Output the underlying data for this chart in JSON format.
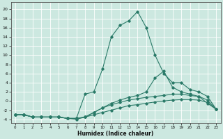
{
  "xlabel": "Humidex (Indice chaleur)",
  "background_color": "#cce8e0",
  "grid_color": "#ffffff",
  "line_color": "#2a7a68",
  "xlim": [
    -0.5,
    23.5
  ],
  "ylim": [
    -4.8,
    21.5
  ],
  "xticks": [
    0,
    1,
    2,
    3,
    4,
    5,
    6,
    7,
    8,
    9,
    10,
    11,
    12,
    13,
    14,
    15,
    16,
    17,
    18,
    19,
    20,
    21,
    22,
    23
  ],
  "yticks": [
    -4,
    -2,
    0,
    2,
    4,
    6,
    8,
    10,
    12,
    14,
    16,
    18,
    20
  ],
  "series": [
    {
      "x": [
        0,
        1,
        2,
        3,
        4,
        5,
        6,
        7,
        8,
        9,
        10,
        11,
        12,
        13,
        14,
        15,
        16,
        17,
        18,
        19,
        20,
        21,
        22,
        23
      ],
      "y": [
        -3,
        -3,
        -3.5,
        -3.5,
        -3.5,
        -3.5,
        -3.8,
        -3.8,
        -3.5,
        -3,
        -2.5,
        -2,
        -1.5,
        -1,
        -0.8,
        -0.5,
        -0.2,
        0.0,
        0.2,
        0.3,
        0.3,
        0.2,
        -0.3,
        -1.8
      ]
    },
    {
      "x": [
        0,
        1,
        2,
        3,
        4,
        5,
        6,
        7,
        8,
        9,
        10,
        11,
        12,
        13,
        14,
        15,
        16,
        17,
        18,
        19,
        20,
        21,
        22,
        23
      ],
      "y": [
        -3,
        -3,
        -3.5,
        -3.5,
        -3.5,
        -3.5,
        -3.8,
        -3.8,
        -3.5,
        -2.5,
        -1.5,
        -0.8,
        -0.3,
        0.2,
        0.5,
        0.8,
        1.0,
        1.2,
        1.5,
        1.5,
        1.2,
        1.0,
        0.2,
        -1.8
      ]
    },
    {
      "x": [
        0,
        1,
        2,
        3,
        4,
        5,
        6,
        7,
        8,
        9,
        10,
        11,
        12,
        13,
        14,
        15,
        16,
        17,
        18,
        19,
        20,
        21,
        22,
        23
      ],
      "y": [
        -3,
        -3,
        -3.5,
        -3.5,
        -3.5,
        -3.5,
        -3.8,
        -3.8,
        1.5,
        2.0,
        7.0,
        14.0,
        16.5,
        17.5,
        19.5,
        16.0,
        10.0,
        6.0,
        4.0,
        4.0,
        2.5,
        2.0,
        1.0,
        -1.8
      ]
    },
    {
      "x": [
        0,
        1,
        2,
        3,
        4,
        5,
        6,
        7,
        8,
        9,
        10,
        11,
        12,
        13,
        14,
        15,
        16,
        17,
        18,
        19,
        20,
        21,
        22,
        23
      ],
      "y": [
        -3,
        -3,
        -3.5,
        -3.5,
        -3.5,
        -3.5,
        -3.8,
        -4.0,
        -3.5,
        -2.5,
        -1.5,
        -0.5,
        0.2,
        0.8,
        1.2,
        2.0,
        5.0,
        6.5,
        3.0,
        2.0,
        1.5,
        1.0,
        -0.5,
        -1.8
      ]
    }
  ]
}
